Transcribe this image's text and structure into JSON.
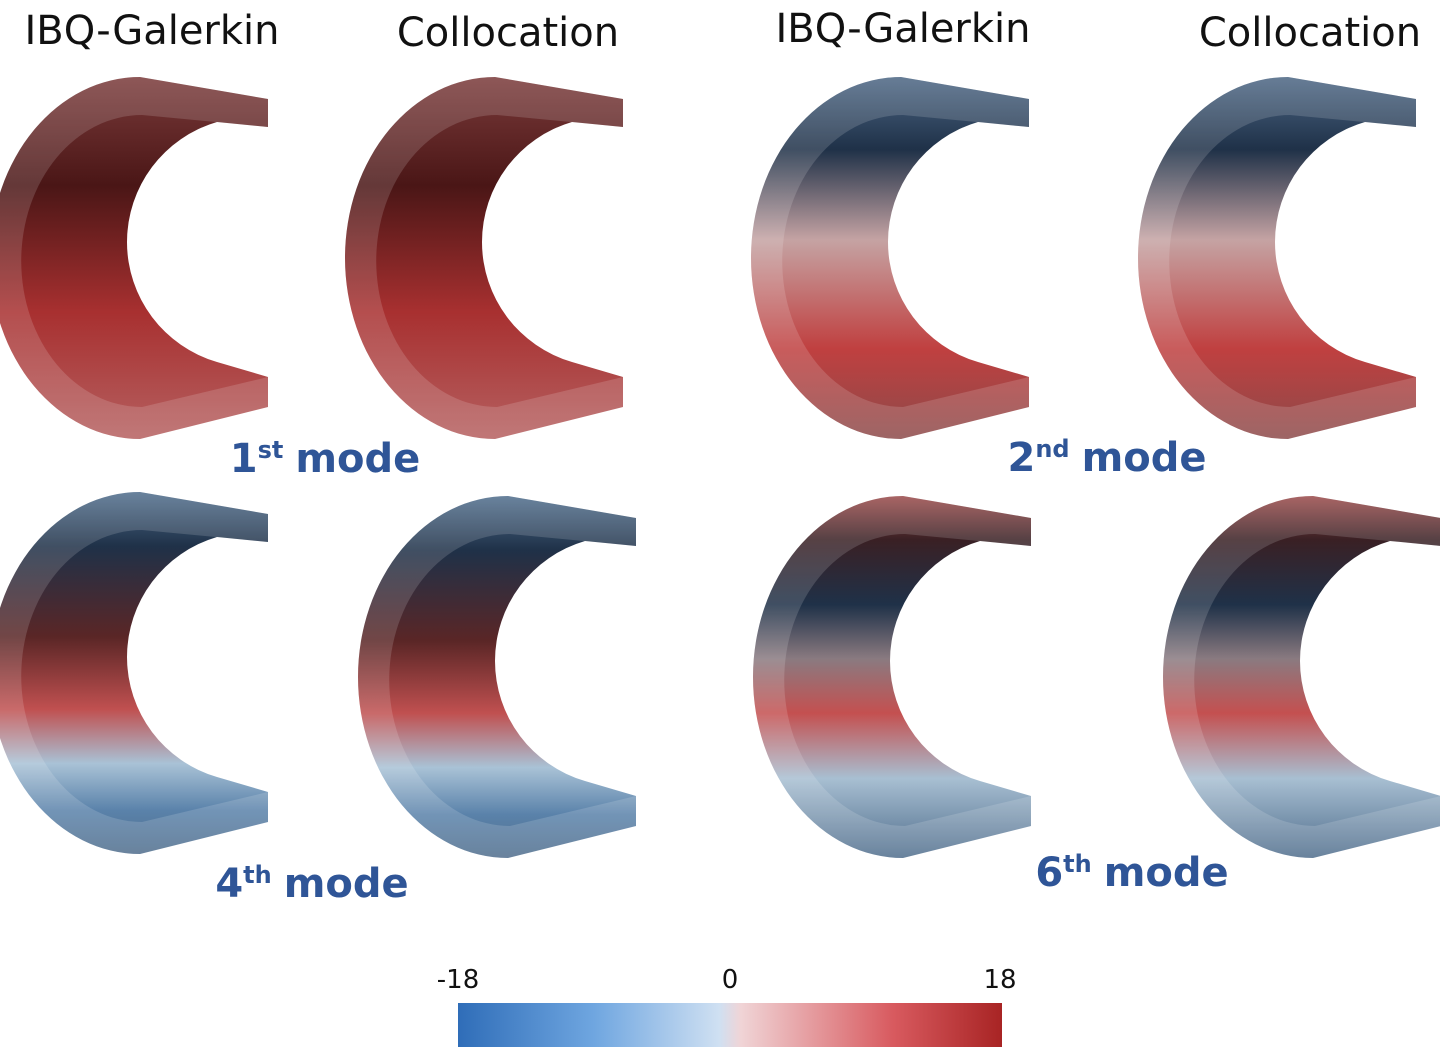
{
  "headers": [
    "IBQ-Galerkin",
    "Collocation",
    "IBQ-Galerkin",
    "Collocation"
  ],
  "modes": [
    {
      "number": "1",
      "suffix": "st",
      "word": "mode"
    },
    {
      "number": "2",
      "suffix": "nd",
      "word": "mode"
    },
    {
      "number": "4",
      "suffix": "th",
      "word": "mode"
    },
    {
      "number": "6",
      "suffix": "th",
      "word": "mode"
    }
  ],
  "colorbar": {
    "min": -18,
    "max": 18,
    "ticks": [
      -18,
      0,
      18
    ]
  }
}
